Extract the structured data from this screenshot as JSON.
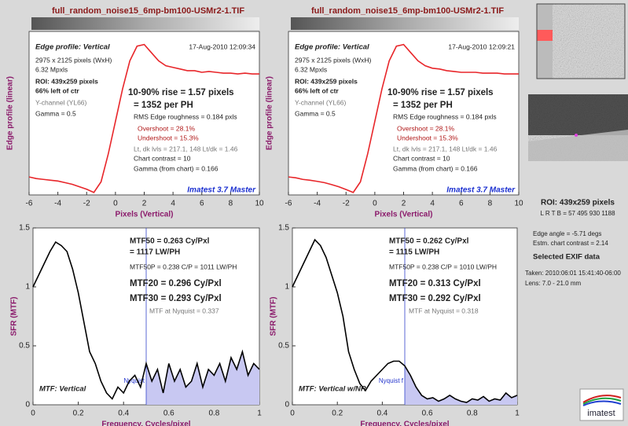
{
  "chart_data": [
    {
      "type": "line",
      "title": "full_random_noise15_6mp-bm100-USMr2-1.TIF",
      "xlabel": "Pixels (Vertical)",
      "ylabel": "Edge profile (linear)",
      "xlim": [
        -6,
        10
      ],
      "ylim": [
        0,
        1
      ],
      "xticks": [
        -6,
        -4,
        -2,
        0,
        2,
        4,
        6,
        8,
        10
      ],
      "x": [
        -6,
        -5.5,
        -5,
        -4.5,
        -4,
        -3.5,
        -3,
        -2.5,
        -2,
        -1.5,
        -1,
        -0.5,
        0,
        0.5,
        1,
        1.5,
        2,
        2.5,
        3,
        3.5,
        4,
        4.5,
        5,
        5.5,
        6,
        6.5,
        7,
        7.5,
        8,
        8.5,
        9,
        9.5,
        10
      ],
      "series": [
        {
          "color": "#e8262a",
          "values": [
            0.11,
            0.1,
            0.095,
            0.09,
            0.085,
            0.075,
            0.065,
            0.05,
            0.035,
            0.015,
            0.08,
            0.25,
            0.45,
            0.65,
            0.82,
            0.91,
            0.92,
            0.87,
            0.82,
            0.79,
            0.78,
            0.77,
            0.76,
            0.76,
            0.75,
            0.755,
            0.75,
            0.745,
            0.745,
            0.74,
            0.745,
            0.74,
            0.74
          ]
        }
      ],
      "annotations": [
        "Edge profile: Vertical",
        "17-Aug-2010 12:09:34",
        "2975 x 2125 pixels (WxH)",
        "6.32 Mpxls",
        "ROI:  439x259 pixels",
        "66% left of ctr",
        "Y-channel  (YL66)",
        "Gamma = 0.5",
        "10-90% rise = 1.57 pixels",
        "= 1352 per PH",
        "RMS Edge roughness = 0.184 pxls",
        "Overshoot = 28.1%",
        "Undershoot = 15.3%",
        "Lt, dk lvls = 217.1, 148   Lt/dk = 1.46",
        "Chart contrast = 10",
        "Gamma (from chart) = 0.166",
        "Imatest 3.7 Master"
      ]
    },
    {
      "type": "line",
      "xlabel": "Frequency, Cycles/pixel",
      "ylabel": "SFR (MTF)",
      "xlim": [
        0,
        1
      ],
      "ylim": [
        0,
        1.5
      ],
      "xticks": [
        0,
        0.2,
        0.4,
        0.6,
        0.8,
        1
      ],
      "yticks": [
        0,
        0.5,
        1,
        1.5
      ],
      "x": [
        0,
        0.025,
        0.05,
        0.075,
        0.1,
        0.125,
        0.15,
        0.175,
        0.2,
        0.225,
        0.25,
        0.275,
        0.3,
        0.325,
        0.35,
        0.375,
        0.4,
        0.425,
        0.45,
        0.475,
        0.5,
        0.525,
        0.55,
        0.575,
        0.6,
        0.625,
        0.65,
        0.675,
        0.7,
        0.725,
        0.75,
        0.775,
        0.8,
        0.825,
        0.85,
        0.875,
        0.9,
        0.925,
        0.95,
        0.975,
        1
      ],
      "series": [
        {
          "color": "#000000",
          "values": [
            1.0,
            1.1,
            1.2,
            1.3,
            1.38,
            1.35,
            1.3,
            1.15,
            0.95,
            0.7,
            0.45,
            0.35,
            0.2,
            0.1,
            0.05,
            0.15,
            0.1,
            0.2,
            0.25,
            0.15,
            0.35,
            0.2,
            0.3,
            0.1,
            0.35,
            0.2,
            0.3,
            0.15,
            0.2,
            0.35,
            0.15,
            0.3,
            0.25,
            0.35,
            0.2,
            0.4,
            0.3,
            0.45,
            0.25,
            0.35,
            0.3
          ]
        }
      ],
      "nyquist": {
        "label": "Nyquist",
        "x": 0.5
      },
      "annotations": [
        "MTF50 = 0.263 Cy/Pxl",
        "= 1117 LW/PH",
        "MTF50P = 0.238 C/P = 1011 LW/PH",
        "MTF20 = 0.296 Cy/Pxl",
        "MTF30 = 0.293 Cy/Pxl",
        "MTF at Nyquist = 0.337",
        "MTF: Vertical"
      ]
    },
    {
      "type": "line",
      "title": "full_random_noise15_6mp-bm100-USMr2-1.TIF",
      "xlabel": "Pixels (Vertical)",
      "ylabel": "Edge profile (linear)",
      "xlim": [
        -6,
        10
      ],
      "ylim": [
        0,
        1
      ],
      "xticks": [
        -6,
        -4,
        -2,
        0,
        2,
        4,
        6,
        8,
        10
      ],
      "x": [
        -6,
        -5.5,
        -5,
        -4.5,
        -4,
        -3.5,
        -3,
        -2.5,
        -2,
        -1.5,
        -1,
        -0.5,
        0,
        0.5,
        1,
        1.5,
        2,
        2.5,
        3,
        3.5,
        4,
        4.5,
        5,
        5.5,
        6,
        6.5,
        7,
        7.5,
        8,
        8.5,
        9,
        9.5,
        10
      ],
      "series": [
        {
          "color": "#e8262a",
          "values": [
            0.11,
            0.105,
            0.095,
            0.09,
            0.083,
            0.075,
            0.063,
            0.05,
            0.033,
            0.015,
            0.08,
            0.25,
            0.45,
            0.65,
            0.82,
            0.91,
            0.92,
            0.87,
            0.82,
            0.79,
            0.775,
            0.77,
            0.76,
            0.755,
            0.75,
            0.75,
            0.75,
            0.745,
            0.745,
            0.745,
            0.74,
            0.74,
            0.74
          ]
        }
      ],
      "annotations": [
        "Edge profile: Vertical",
        "17-Aug-2010 12:09:21",
        "2975 x 2125 pixels (WxH)",
        "6.32 Mpxls",
        "ROI:  439x259 pixels",
        "66% left of ctr",
        "Y-channel  (YL66)",
        "Gamma = 0.5",
        "10-90% rise = 1.57 pixels",
        "= 1352 per PH",
        "RMS Edge roughness = 0.184 pxls",
        "Overshoot = 28.1%",
        "Undershoot = 15.3%",
        "Lt, dk lvls = 217.1, 148   Lt/dk = 1.46",
        "Chart contrast = 10",
        "Gamma (from chart) = 0.166",
        "Imatest 3.7 Master"
      ]
    },
    {
      "type": "line",
      "xlabel": "Frequency, Cycles/pixel",
      "ylabel": "SFR (MTF)",
      "xlim": [
        0,
        1
      ],
      "ylim": [
        0,
        1.5
      ],
      "xticks": [
        0,
        0.2,
        0.4,
        0.6,
        0.8,
        1
      ],
      "yticks": [
        0,
        0.5,
        1,
        1.5
      ],
      "x": [
        0,
        0.025,
        0.05,
        0.075,
        0.1,
        0.125,
        0.15,
        0.175,
        0.2,
        0.225,
        0.25,
        0.275,
        0.3,
        0.325,
        0.35,
        0.375,
        0.4,
        0.425,
        0.45,
        0.475,
        0.5,
        0.525,
        0.55,
        0.575,
        0.6,
        0.625,
        0.65,
        0.675,
        0.7,
        0.725,
        0.75,
        0.775,
        0.8,
        0.825,
        0.85,
        0.875,
        0.9,
        0.925,
        0.95,
        0.975,
        1
      ],
      "series": [
        {
          "color": "#000000",
          "values": [
            1.0,
            1.1,
            1.2,
            1.3,
            1.4,
            1.35,
            1.25,
            1.1,
            0.95,
            0.75,
            0.45,
            0.3,
            0.18,
            0.12,
            0.2,
            0.25,
            0.3,
            0.35,
            0.37,
            0.37,
            0.33,
            0.25,
            0.15,
            0.08,
            0.05,
            0.06,
            0.03,
            0.05,
            0.08,
            0.05,
            0.03,
            0.02,
            0.05,
            0.04,
            0.07,
            0.03,
            0.05,
            0.04,
            0.1,
            0.06,
            0.08
          ]
        }
      ],
      "nyquist": {
        "label": "Nyquist f",
        "x": 0.5
      },
      "annotations": [
        "MTF50 = 0.262 Cy/Pxl",
        "= 1115 LW/PH",
        "MTF50P = 0.238 C/P = 1010 LW/PH",
        "MTF20 = 0.313 Cy/Pxl",
        "MTF30 = 0.292 Cy/Pxl",
        "MTF at Nyquist = 0.318",
        "MTF: Vertical w/NR"
      ]
    }
  ],
  "side_panel": {
    "roi": "ROI:  439x259 pixels",
    "lrtb": "L R T B = 57 495  930 1188",
    "edge_angle": "Edge angle = -5.71 degs",
    "chart_contrast": "Estm. chart contrast = 2.14",
    "exif_heading": "Selected EXIF data",
    "taken": "Taken: 2010:06:01 15:41:40-06:00",
    "lens": "Lens:  7.0 - 21.0 mm",
    "logo": "imatest"
  }
}
